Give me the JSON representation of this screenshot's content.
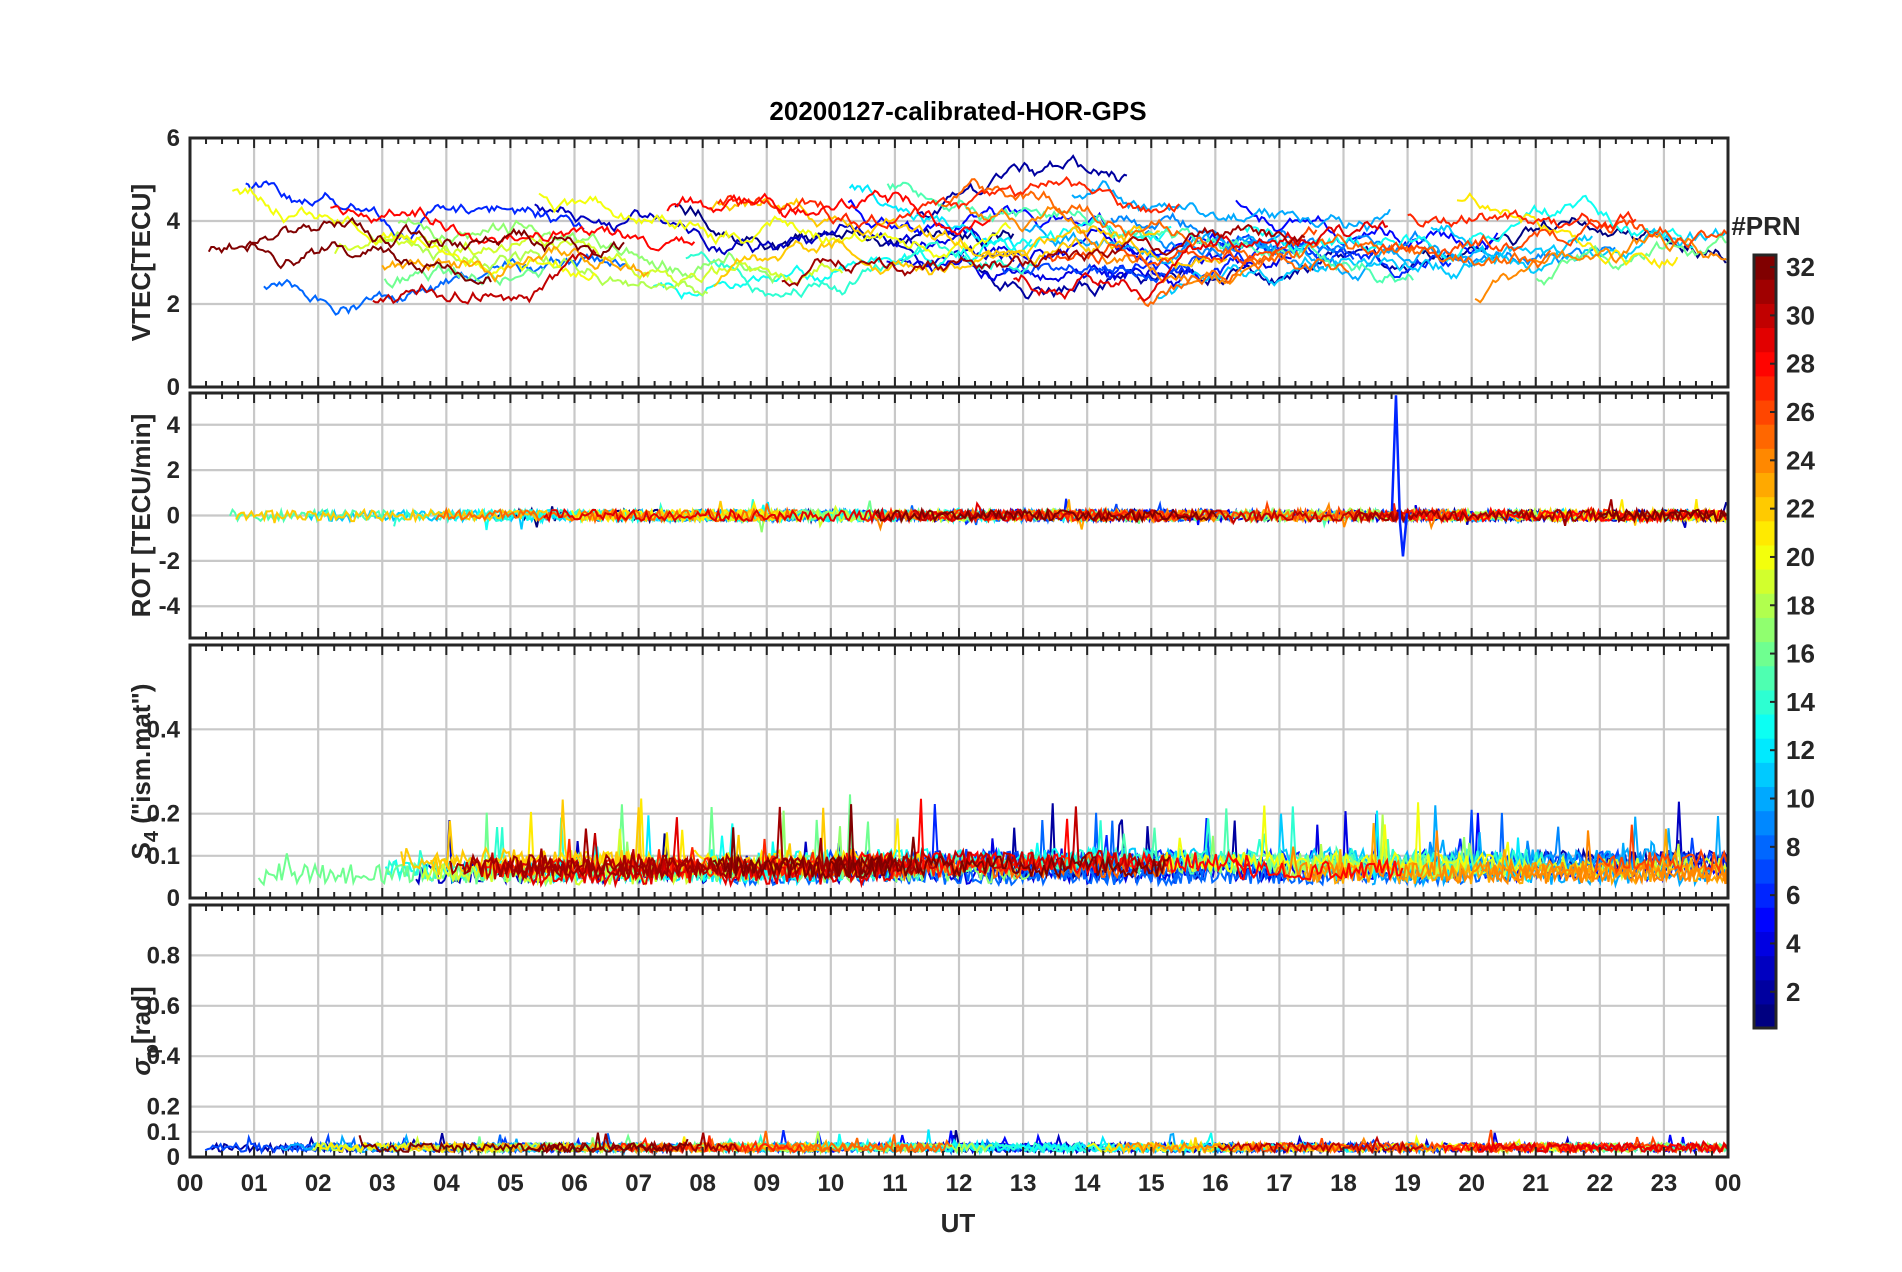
{
  "chart_data": [
    {
      "type": "line",
      "panel": "vtec",
      "title": "20200127-calibrated-HOR-GPS",
      "ylabel": "VTEC[TECU]",
      "ylim": [
        0,
        6
      ],
      "yticks": [
        0,
        2,
        4,
        6
      ],
      "ytick_labels": [
        "0",
        "2",
        "4",
        "6"
      ],
      "xlim": [
        0,
        24
      ],
      "grid": true,
      "description_of_series": "~32 GPS PRN tracks, VTEC mostly between 1 and 6 TECU"
    },
    {
      "type": "line",
      "panel": "rot",
      "ylabel": "ROT [TECU/min]",
      "ylim": [
        -5.4,
        5.4
      ],
      "yticks": [
        -4,
        -2,
        0,
        2,
        4
      ],
      "ytick_labels": [
        "-4",
        "-2",
        "0",
        "2",
        "4"
      ],
      "xlim": [
        0,
        24
      ],
      "grid": true,
      "spike": {
        "x": 18.85,
        "max": 5.3,
        "min": -1.8
      }
    },
    {
      "type": "line",
      "panel": "s4",
      "ylabel_main": "S",
      "ylabel_sub": "4",
      "ylabel_tail": " (\"ism.mat\")",
      "ylim": [
        0,
        0.6
      ],
      "yticks": [
        0,
        0.1,
        0.2,
        0.4
      ],
      "ytick_labels": [
        "0",
        "0.1",
        "0.2",
        "0.4"
      ],
      "xlim": [
        0,
        24
      ],
      "grid": true
    },
    {
      "type": "line",
      "panel": "sigma_phi",
      "ylabel_main": "σ",
      "ylabel_sub": "φ",
      "ylabel_tail": "[rad]",
      "ylim": [
        0,
        1
      ],
      "yticks": [
        0,
        0.1,
        0.2,
        0.4,
        0.6,
        0.8
      ],
      "ytick_labels": [
        "0",
        "0.1",
        "0.2",
        "0.4",
        "0.6",
        "0.8"
      ],
      "xlim": [
        0,
        24
      ],
      "grid": true,
      "xlabel": "UT",
      "xtick_labels": [
        "00",
        "01",
        "02",
        "03",
        "04",
        "05",
        "06",
        "07",
        "08",
        "09",
        "10",
        "11",
        "12",
        "13",
        "14",
        "15",
        "16",
        "17",
        "18",
        "19",
        "20",
        "21",
        "22",
        "23",
        "00"
      ]
    }
  ],
  "colorbar": {
    "title": "#PRN",
    "range": [
      1,
      32
    ],
    "ticks": [
      2,
      4,
      6,
      8,
      10,
      12,
      14,
      16,
      18,
      20,
      22,
      24,
      26,
      28,
      30,
      32
    ],
    "tick_labels": [
      "2",
      "4",
      "6",
      "8",
      "10",
      "12",
      "14",
      "16",
      "18",
      "20",
      "22",
      "24",
      "26",
      "28",
      "30",
      "32"
    ],
    "colormap": "jet"
  },
  "colors": {
    "frame": "#262626",
    "grid": "#c8c8c8"
  }
}
